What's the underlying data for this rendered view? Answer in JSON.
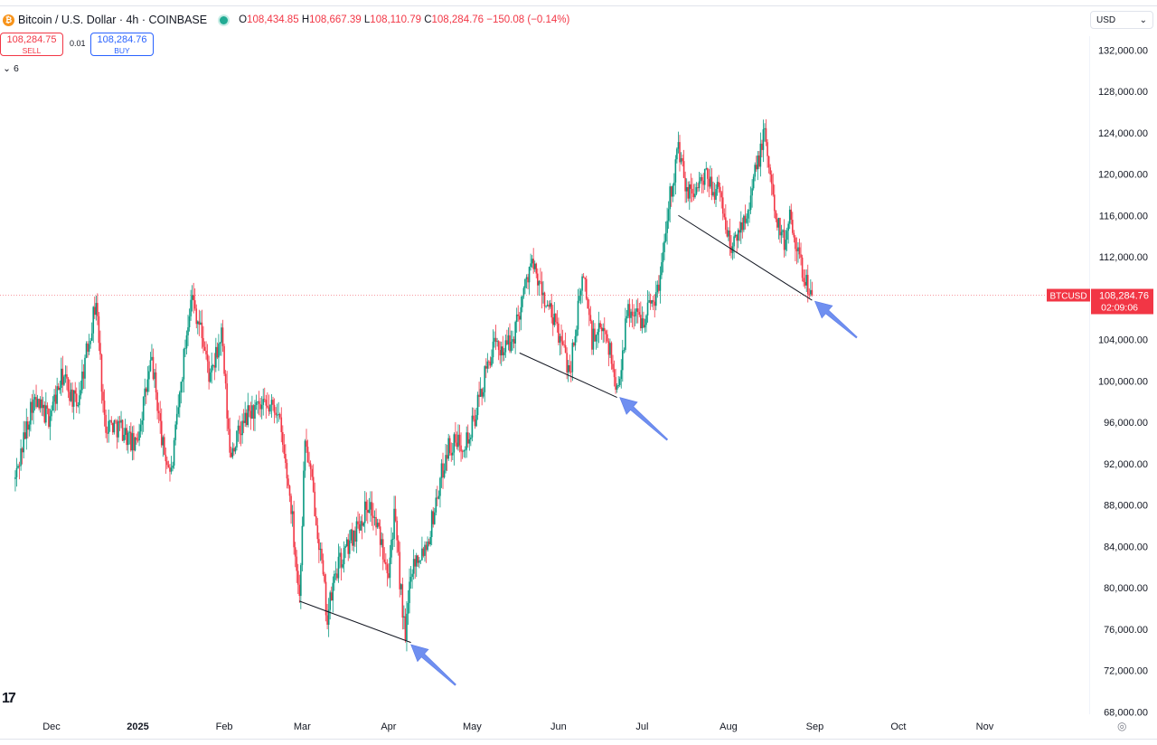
{
  "header": {
    "coin_glyph": "₿",
    "symbol_title": "Bitcoin / U.S. Dollar · 4h · COINBASE",
    "ohlc": {
      "o_label": "O",
      "o": "108,434.85",
      "h_label": "H",
      "h": "108,667.39",
      "l_label": "L",
      "l": "108,110.79",
      "c_label": "C",
      "c": "108,284.76",
      "change": "−150.08 (−0.14%)"
    }
  },
  "trade": {
    "sell_price": "108,284.75",
    "sell_label": "SELL",
    "spread": "0.01",
    "buy_price": "108,284.76",
    "buy_label": "BUY"
  },
  "indicators": {
    "chevron": "⌄",
    "count": "6"
  },
  "currency": {
    "selected": "USD",
    "chevron": "⌄"
  },
  "logo": "17",
  "colors": {
    "up": "#089981",
    "down": "#f23645",
    "accent": "#2962ff",
    "arrow": "#6f8ff0",
    "trendline": "#131722"
  },
  "chart_data": {
    "type": "candlestick",
    "symbol": "BTCUSD",
    "interval": "4h",
    "y_axis": {
      "ticks": [
        68000,
        72000,
        76000,
        80000,
        84000,
        88000,
        92000,
        96000,
        100000,
        104000,
        108000,
        112000,
        116000,
        120000,
        124000,
        128000,
        132000
      ],
      "tick_labels": [
        "68,000.00",
        "72,000.00",
        "76,000.00",
        "80,000.00",
        "84,000.00",
        "88,000.00",
        "92,000.00",
        "96,000.00",
        "100,000.00",
        "104,000.00",
        "108,000.00",
        "112,000.00",
        "116,000.00",
        "120,000.00",
        "124,000.00",
        "128,000.00",
        "132,000.00"
      ]
    },
    "x_axis": {
      "labels": [
        "Dec",
        "2025",
        "Feb",
        "Mar",
        "Apr",
        "May",
        "Jun",
        "Jul",
        "Aug",
        "Sep",
        "Oct",
        "Nov"
      ],
      "bold_labels": [
        "2025"
      ]
    },
    "last_price": {
      "label": "BTCUSD",
      "value": 108284.76,
      "value_text": "108,284.76",
      "countdown": "02:09:06"
    },
    "price_path": [
      {
        "date": "2024-11-18",
        "price": 90500
      },
      {
        "date": "2024-11-24",
        "price": 98000
      },
      {
        "date": "2024-11-30",
        "price": 96500
      },
      {
        "date": "2024-12-05",
        "price": 100500
      },
      {
        "date": "2024-12-10",
        "price": 97500
      },
      {
        "date": "2024-12-17",
        "price": 107800
      },
      {
        "date": "2024-12-20",
        "price": 96000
      },
      {
        "date": "2024-12-26",
        "price": 95500
      },
      {
        "date": "2024-12-31",
        "price": 93500
      },
      {
        "date": "2025-01-06",
        "price": 102000
      },
      {
        "date": "2025-01-10",
        "price": 93500
      },
      {
        "date": "2025-01-13",
        "price": 91000
      },
      {
        "date": "2025-01-20",
        "price": 108500
      },
      {
        "date": "2025-01-24",
        "price": 104500
      },
      {
        "date": "2025-01-27",
        "price": 100000
      },
      {
        "date": "2025-01-31",
        "price": 104500
      },
      {
        "date": "2025-02-03",
        "price": 93000
      },
      {
        "date": "2025-02-10",
        "price": 97000
      },
      {
        "date": "2025-02-20",
        "price": 97500
      },
      {
        "date": "2025-02-25",
        "price": 88000
      },
      {
        "date": "2025-02-28",
        "price": 79000
      },
      {
        "date": "2025-03-02",
        "price": 94500
      },
      {
        "date": "2025-03-06",
        "price": 87000
      },
      {
        "date": "2025-03-10",
        "price": 77000
      },
      {
        "date": "2025-03-13",
        "price": 81500
      },
      {
        "date": "2025-03-19",
        "price": 85000
      },
      {
        "date": "2025-03-25",
        "price": 88300
      },
      {
        "date": "2025-04-01",
        "price": 82000
      },
      {
        "date": "2025-04-03",
        "price": 87000
      },
      {
        "date": "2025-04-07",
        "price": 74800
      },
      {
        "date": "2025-04-09",
        "price": 82000
      },
      {
        "date": "2025-04-15",
        "price": 84500
      },
      {
        "date": "2025-04-22",
        "price": 93500
      },
      {
        "date": "2025-04-30",
        "price": 94500
      },
      {
        "date": "2025-05-08",
        "price": 103000
      },
      {
        "date": "2025-05-15",
        "price": 103500
      },
      {
        "date": "2025-05-22",
        "price": 111500
      },
      {
        "date": "2025-05-26",
        "price": 108500
      },
      {
        "date": "2025-06-01",
        "price": 104500
      },
      {
        "date": "2025-06-05",
        "price": 101000
      },
      {
        "date": "2025-06-10",
        "price": 110500
      },
      {
        "date": "2025-06-13",
        "price": 104000
      },
      {
        "date": "2025-06-18",
        "price": 105000
      },
      {
        "date": "2025-06-22",
        "price": 99000
      },
      {
        "date": "2025-06-26",
        "price": 107000
      },
      {
        "date": "2025-07-01",
        "price": 106000
      },
      {
        "date": "2025-07-07",
        "price": 109000
      },
      {
        "date": "2025-07-10",
        "price": 116500
      },
      {
        "date": "2025-07-14",
        "price": 122500
      },
      {
        "date": "2025-07-17",
        "price": 118000
      },
      {
        "date": "2025-07-24",
        "price": 119500
      },
      {
        "date": "2025-07-29",
        "price": 118000
      },
      {
        "date": "2025-08-02",
        "price": 112500
      },
      {
        "date": "2025-08-08",
        "price": 117000
      },
      {
        "date": "2025-08-14",
        "price": 124000
      },
      {
        "date": "2025-08-17",
        "price": 117500
      },
      {
        "date": "2025-08-21",
        "price": 113000
      },
      {
        "date": "2025-08-23",
        "price": 116500
      },
      {
        "date": "2025-08-27",
        "price": 111000
      },
      {
        "date": "2025-08-31",
        "price": 108285
      }
    ],
    "trendlines": [
      {
        "from": {
          "date": "2025-02-28",
          "price": 78700
        },
        "to": {
          "date": "2025-04-09",
          "price": 74700
        }
      },
      {
        "from": {
          "date": "2025-05-18",
          "price": 102700
        },
        "to": {
          "date": "2025-06-22",
          "price": 98400
        }
      },
      {
        "from": {
          "date": "2025-07-14",
          "price": 116000
        },
        "to": {
          "date": "2025-08-31",
          "price": 107800
        }
      }
    ],
    "arrows": [
      {
        "tip": {
          "date": "2025-04-09",
          "price": 74500
        },
        "tail": {
          "date": "2025-04-25",
          "price": 70600
        }
      },
      {
        "tip": {
          "date": "2025-06-23",
          "price": 98400
        },
        "tail": {
          "date": "2025-07-10",
          "price": 94300
        }
      },
      {
        "tip": {
          "date": "2025-09-01",
          "price": 107700
        },
        "tail": {
          "date": "2025-09-16",
          "price": 104200
        }
      }
    ]
  }
}
